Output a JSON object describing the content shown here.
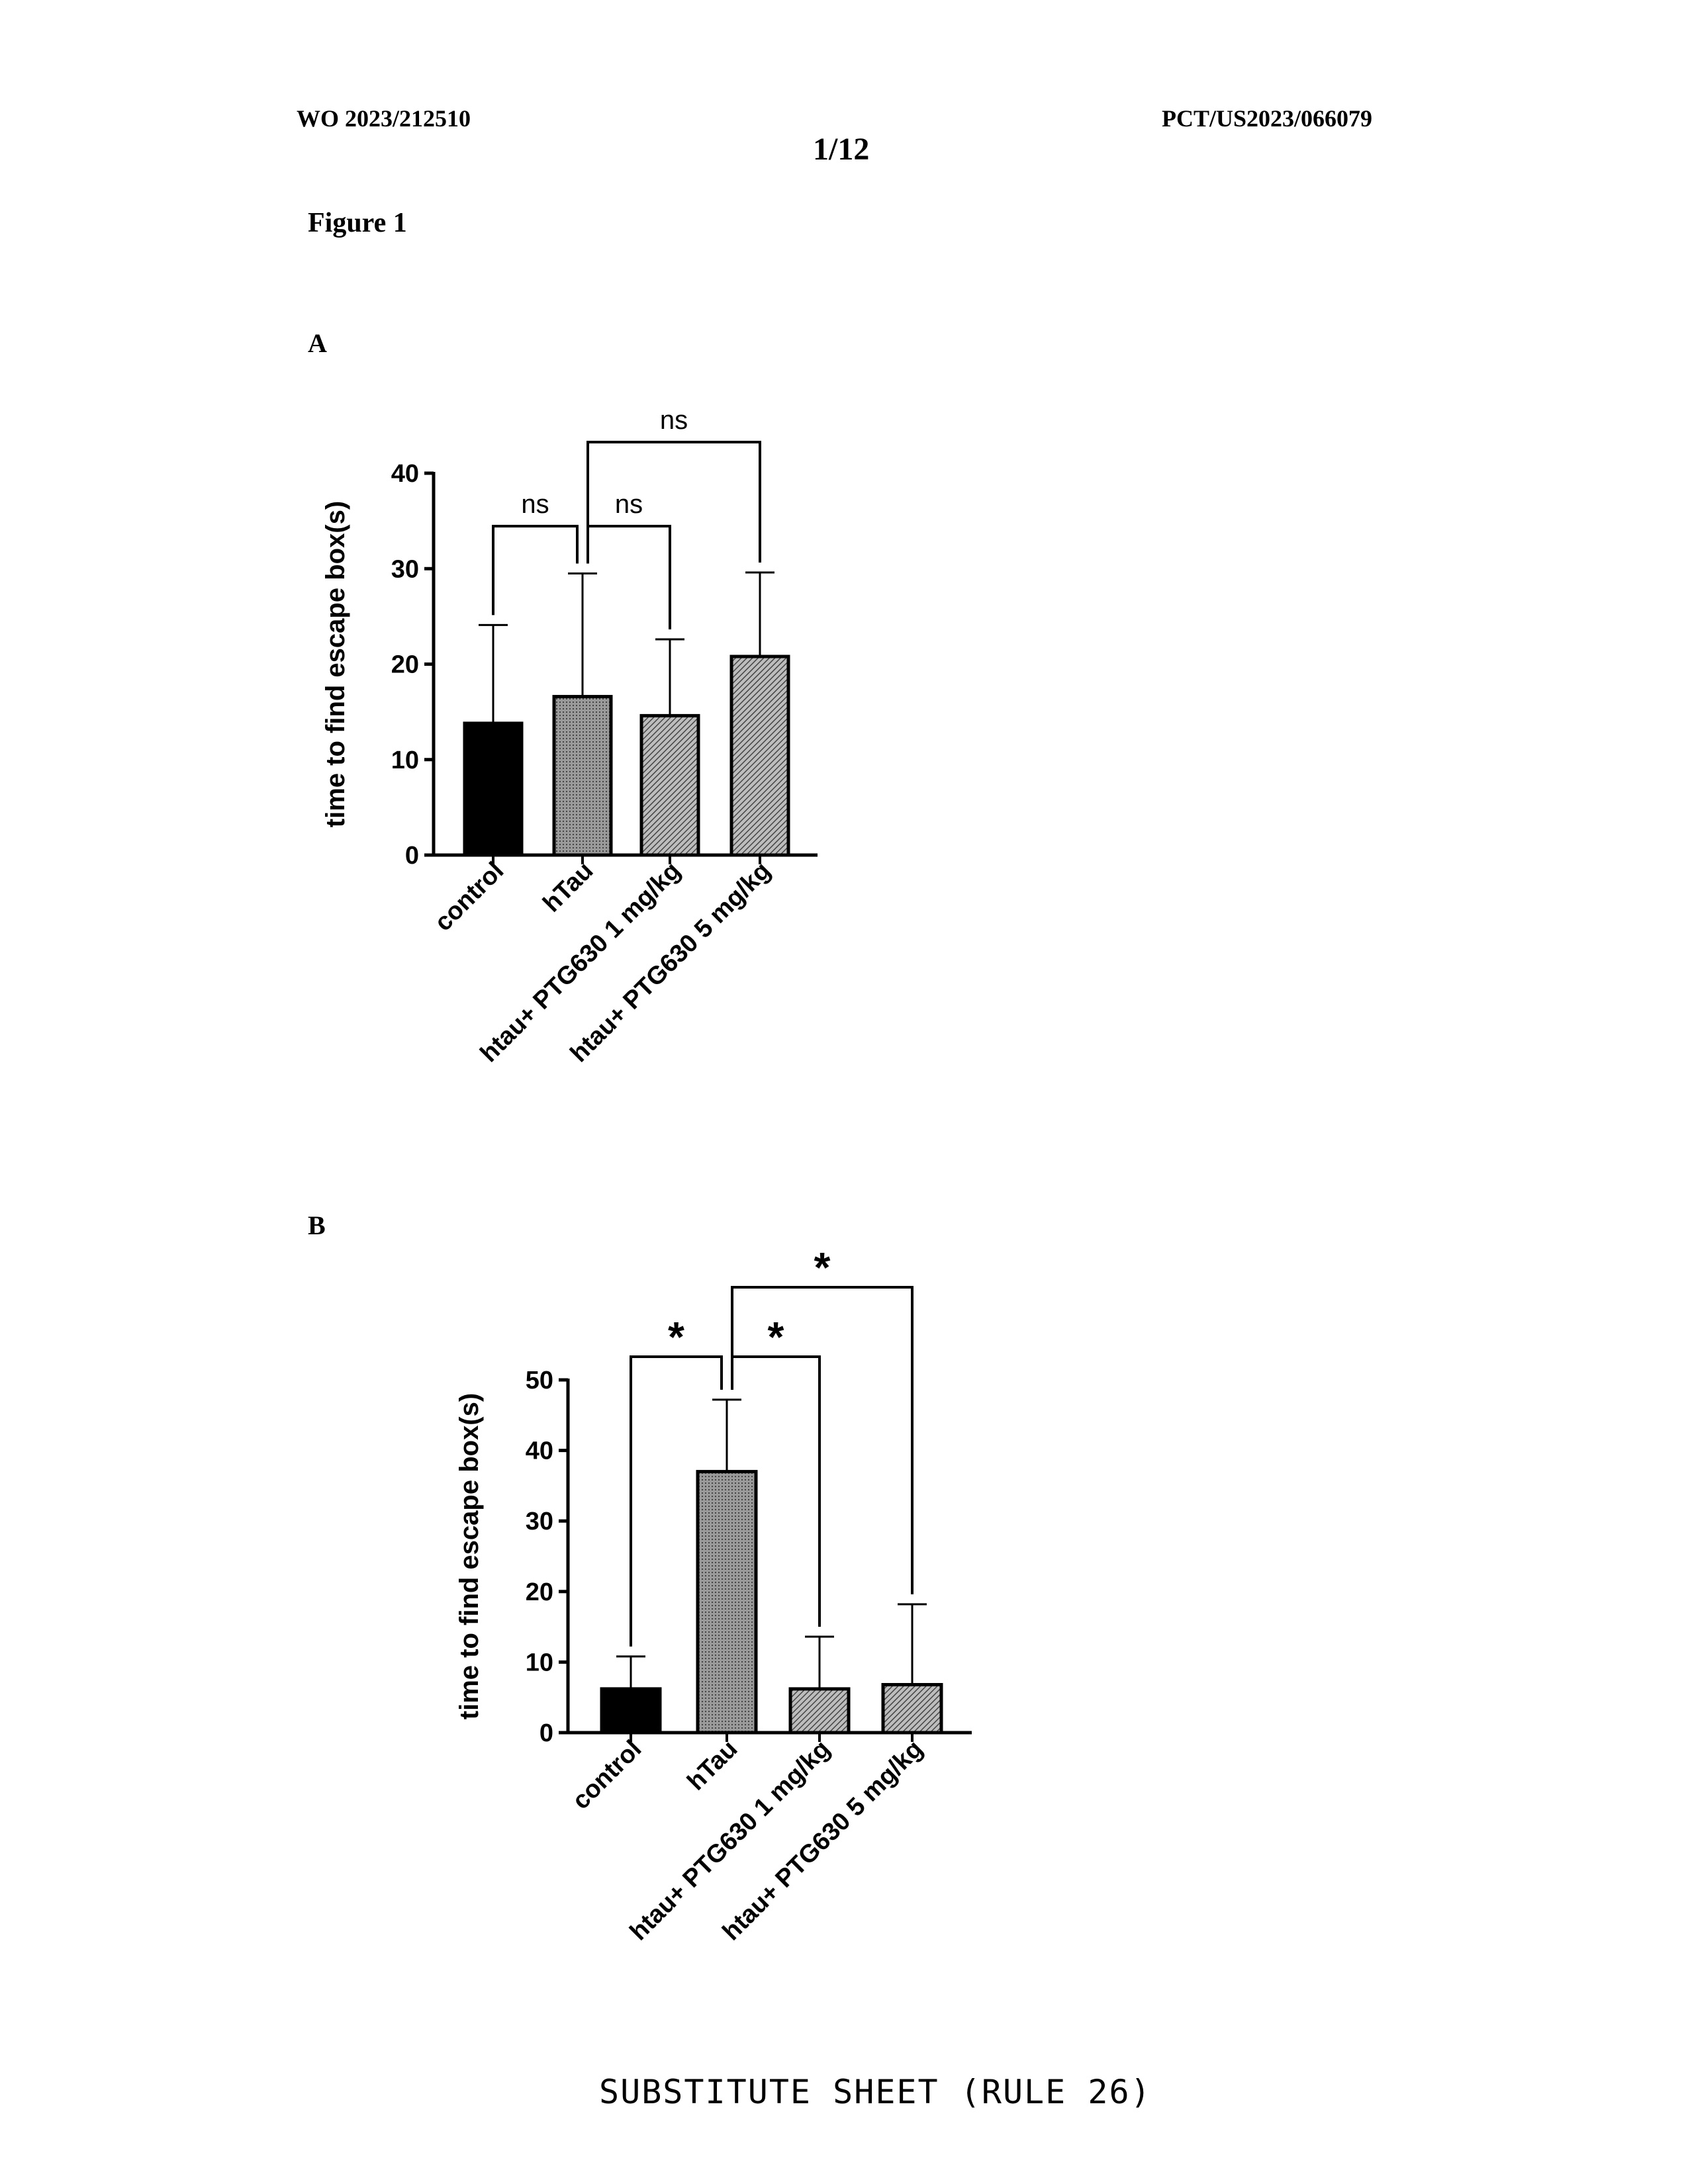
{
  "header": {
    "publication": "WO 2023/212510",
    "application": "PCT/US2023/066079",
    "page": "1/12"
  },
  "figure_title": "Figure 1",
  "footer": "SUBSTITUTE SHEET (RULE 26)",
  "colors": {
    "control": "#000000",
    "bars": "#8a8a8a",
    "outline": "#000000"
  },
  "chart_data": [
    {
      "panel": "A",
      "type": "bar",
      "categories": [
        "control",
        "hTau",
        "htau+ PTG630 1 mg/kg",
        "htau+ PTG630 5 mg/kg"
      ],
      "values": [
        13.8,
        16.6,
        14.6,
        20.8
      ],
      "error_upper": [
        24.1,
        29.5,
        22.6,
        29.6
      ],
      "ylabel": "time to find escape box(s)",
      "ylim": [
        0,
        40
      ],
      "yticks": [
        0,
        10,
        20,
        30,
        40
      ],
      "significance": [
        {
          "from": 0,
          "to": 1,
          "label": "ns"
        },
        {
          "from": 1,
          "to": 2,
          "label": "ns"
        },
        {
          "from": 1,
          "to": 3,
          "label": "ns"
        }
      ]
    },
    {
      "panel": "B",
      "type": "bar",
      "categories": [
        "control",
        "hTau",
        "htau+ PTG630 1 mg/kg",
        "htau+ PTG630 5 mg/kg"
      ],
      "values": [
        6.2,
        37.0,
        6.2,
        6.8
      ],
      "error_upper": [
        10.8,
        47.2,
        13.6,
        18.2
      ],
      "ylabel": "time to find escape box(s)",
      "ylim": [
        0,
        50
      ],
      "yticks": [
        0,
        10,
        20,
        30,
        40,
        50
      ],
      "significance": [
        {
          "from": 0,
          "to": 1,
          "label": "*"
        },
        {
          "from": 1,
          "to": 2,
          "label": "*"
        },
        {
          "from": 1,
          "to": 3,
          "label": "*"
        }
      ]
    }
  ]
}
